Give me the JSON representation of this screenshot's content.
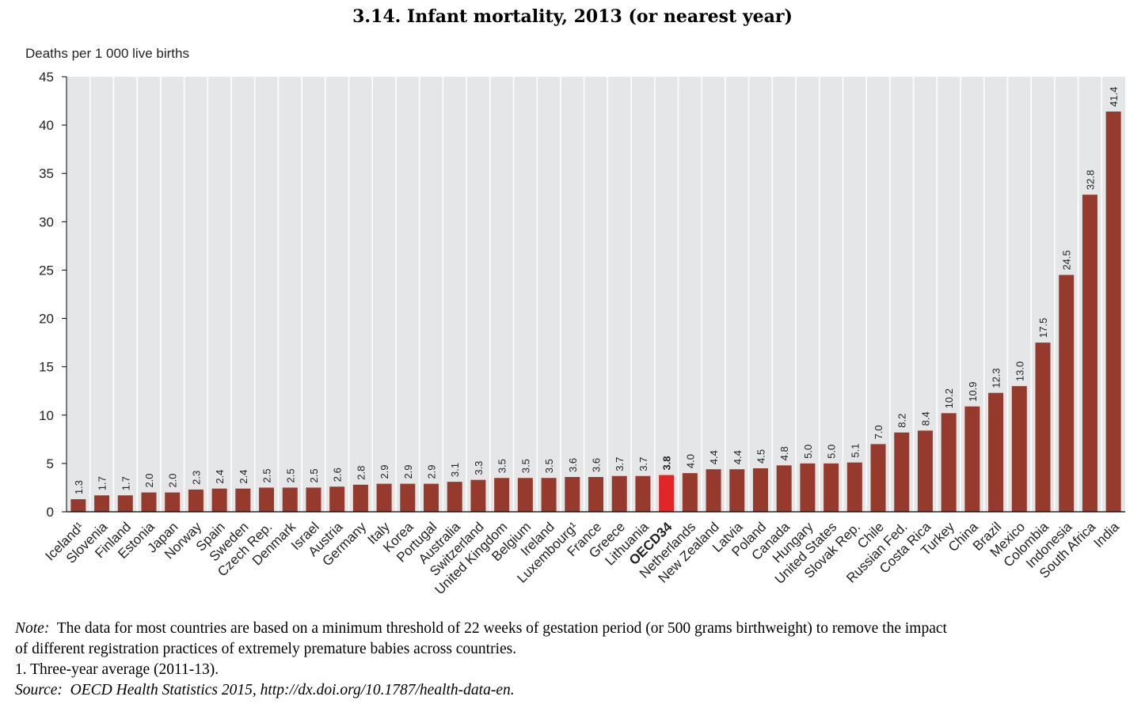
{
  "chart_data": {
    "type": "bar",
    "title": "3.14.  Infant mortality, 2013 (or nearest year)",
    "ylabel": "Deaths per 1 000 live births",
    "ylim": [
      0,
      45
    ],
    "yticks": [
      0,
      5,
      10,
      15,
      20,
      25,
      30,
      35,
      40,
      45
    ],
    "grid": "vertical",
    "categories": [
      "Iceland¹",
      "Slovenia",
      "Finland",
      "Estonia",
      "Japan",
      "Norway",
      "Spain",
      "Sweden",
      "Czech Rep.",
      "Denmark",
      "Israel",
      "Austria",
      "Germany",
      "Italy",
      "Korea",
      "Portugal",
      "Australia",
      "Switzerland",
      "United Kingdom",
      "Belgium",
      "Ireland",
      "Luxembourg¹",
      "France",
      "Greece",
      "Lithuania",
      "OECD34",
      "Netherlands",
      "New Zealand",
      "Latvia",
      "Poland",
      "Canada",
      "Hungary",
      "United States",
      "Slovak Rep.",
      "Chile",
      "Russian Fed.",
      "Costa Rica",
      "Turkey",
      "China",
      "Brazil",
      "Mexico",
      "Colombia",
      "Indonesia",
      "South Africa",
      "India"
    ],
    "values": [
      1.3,
      1.7,
      1.7,
      2.0,
      2.0,
      2.3,
      2.4,
      2.4,
      2.5,
      2.5,
      2.5,
      2.6,
      2.8,
      2.9,
      2.9,
      2.9,
      3.1,
      3.3,
      3.5,
      3.5,
      3.5,
      3.6,
      3.6,
      3.7,
      3.7,
      3.8,
      4.0,
      4.4,
      4.4,
      4.5,
      4.8,
      5.0,
      5.0,
      5.1,
      7.0,
      8.2,
      8.4,
      10.2,
      10.9,
      12.3,
      13.0,
      17.5,
      24.5,
      32.8,
      41.4
    ],
    "value_labels": [
      "1.3",
      "1.7",
      "1.7",
      "2.0",
      "2.0",
      "2.3",
      "2.4",
      "2.4",
      "2.5",
      "2.5",
      "2.5",
      "2.6",
      "2.8",
      "2.9",
      "2.9",
      "2.9",
      "3.1",
      "3.3",
      "3.5",
      "3.5",
      "3.5",
      "3.6",
      "3.6",
      "3.7",
      "3.7",
      "3.8",
      "4.0",
      "4.4",
      "4.4",
      "4.5",
      "4.8",
      "5.0",
      "5.0",
      "5.1",
      "7.0",
      "8.2",
      "8.4",
      "10.2",
      "10.9",
      "12.3",
      "13.0",
      "17.5",
      "24.5",
      "32.8",
      "41.4"
    ],
    "highlight": "OECD34",
    "colors": {
      "bar": "#953a2c",
      "highlight": "#e32527",
      "plot_bg": "#e5e6e8",
      "grid": "#ffffff"
    }
  },
  "notes": {
    "note_label": "Note:",
    "note_text_1": "The data for most countries are based on a minimum threshold of 22 weeks of gestation period (or 500 grams birthweight) to remove the impact",
    "note_text_2": "of different registration practices of extremely premature babies across countries.",
    "footnote": "1.   Three-year average (2011-13).",
    "source_label": "Source:",
    "source_text": "OECD Health Statistics 2015, http://dx.doi.org/10.1787/health-data-en."
  }
}
